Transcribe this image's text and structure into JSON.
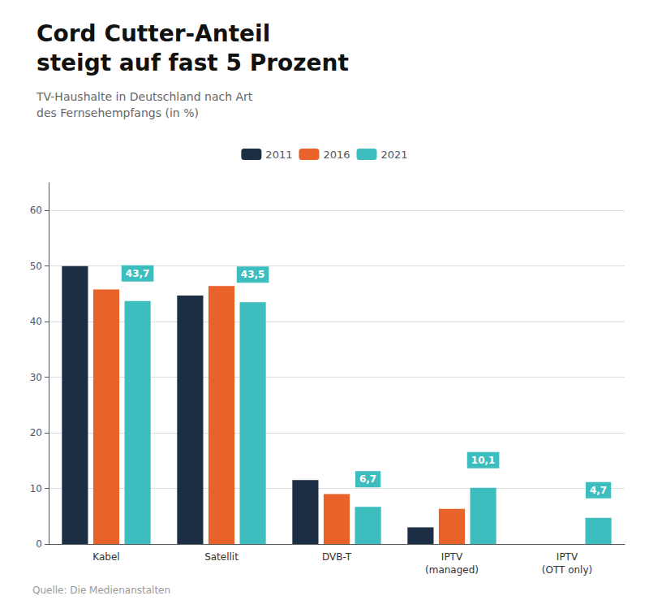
{
  "chart_data": {
    "type": "bar",
    "title": "Cord Cutter-Anteil\nsteigt auf fast 5 Prozent",
    "subtitle": "TV-Haushalte in Deutschland nach Art\ndes Fernsehempfangs (in %)",
    "source": "Quelle: Die Medienanstalten",
    "categories": [
      "Kabel",
      "Satellit",
      "DVB-T",
      "IPTV\n(managed)",
      "IPTV\n(OTT only)"
    ],
    "series": [
      {
        "name": "2011",
        "color": "#1b2e44",
        "values": [
          50.0,
          44.7,
          11.5,
          3.0,
          0.0
        ]
      },
      {
        "name": "2016",
        "color": "#e8622a",
        "values": [
          45.8,
          46.4,
          9.0,
          6.3,
          0.0
        ]
      },
      {
        "name": "2021",
        "color": "#3dbdbd",
        "values": [
          43.7,
          43.5,
          6.7,
          10.1,
          4.7
        ],
        "data_labels": true,
        "value_labels": [
          "43,7",
          "43,5",
          "6,7",
          "10,1",
          "4,7"
        ]
      }
    ],
    "ylim": [
      0,
      65
    ],
    "yticks": [
      0,
      10,
      20,
      30,
      40,
      50,
      60
    ],
    "grid": true,
    "legend": "top"
  }
}
